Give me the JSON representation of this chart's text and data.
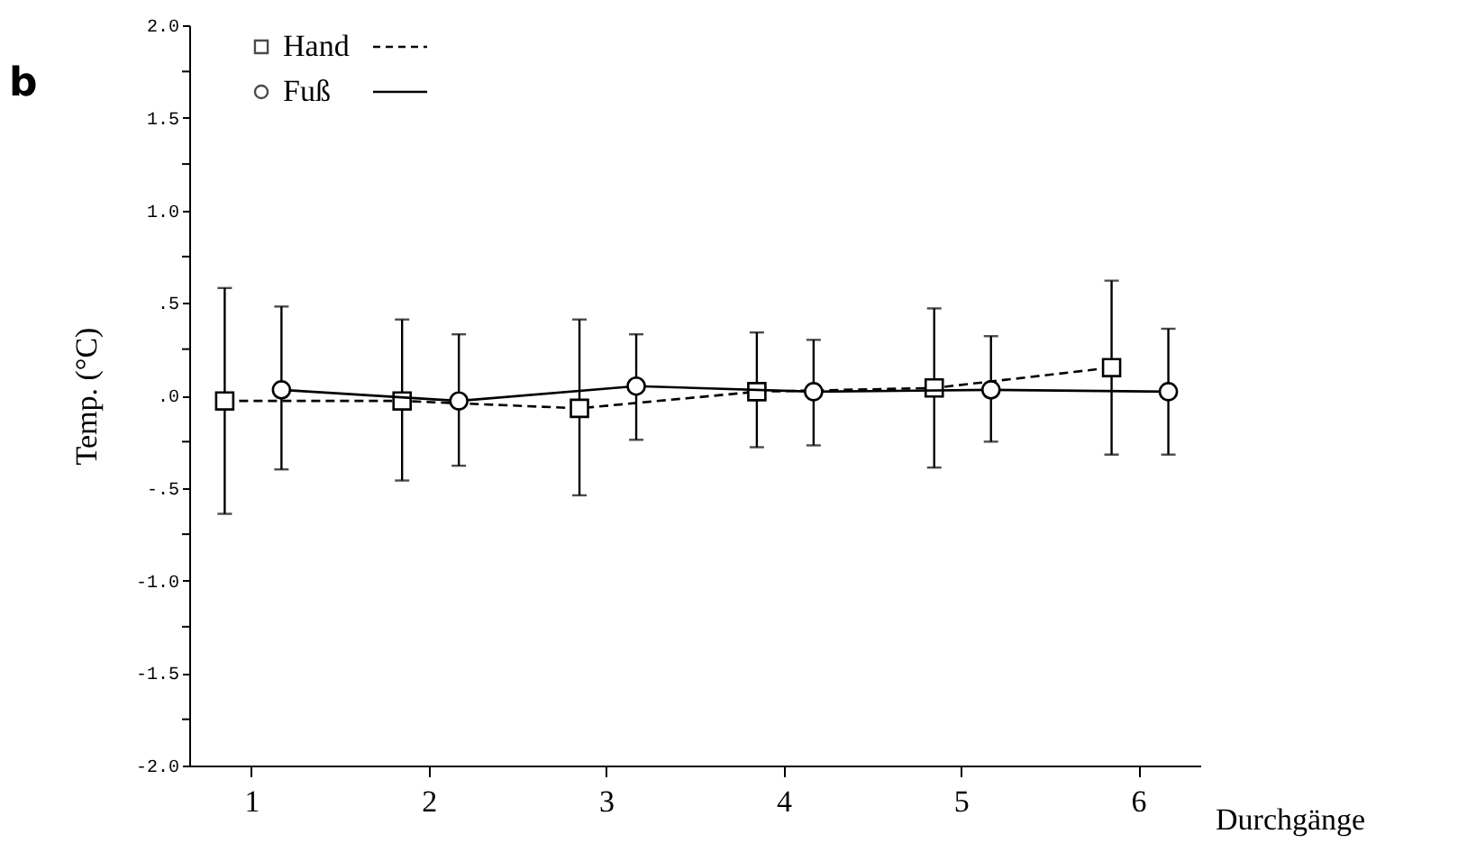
{
  "chart_data": {
    "type": "line",
    "xlabel": "Durchgänge",
    "ylabel": "Temp. (°C)",
    "annotations": [
      "b"
    ],
    "xlim": [
      0.65,
      6.35
    ],
    "xticks": [
      1,
      2,
      3,
      4,
      5,
      6
    ],
    "ylim": [
      -2.0,
      2.0
    ],
    "yticks": [
      {
        "value": -2.0,
        "label": "-2.0"
      },
      {
        "value": -1.75,
        "label": null
      },
      {
        "value": -1.5,
        "label": "-1.5"
      },
      {
        "value": -1.25,
        "label": null
      },
      {
        "value": -1.0,
        "label": "-1.0"
      },
      {
        "value": -0.75,
        "label": null
      },
      {
        "value": -0.5,
        "label": "-.5"
      },
      {
        "value": -0.25,
        "label": null
      },
      {
        "value": 0,
        "label": ".0"
      },
      {
        "value": 0.25,
        "label": null
      },
      {
        "value": 0.5,
        "label": ".5"
      },
      {
        "value": 0.75,
        "label": null
      },
      {
        "value": 1.0,
        "label": "1.0"
      },
      {
        "value": 1.25,
        "label": null
      },
      {
        "value": 1.5,
        "label": "1.5"
      },
      {
        "value": 1.75,
        "label": null
      },
      {
        "value": 2.0,
        "label": "2.0"
      }
    ],
    "grid": false,
    "legend": "top left",
    "series": [
      {
        "name": "Hand",
        "color": "#000000",
        "marker": "square",
        "line_style": "dashed",
        "x": [
          0.85,
          1.85,
          2.85,
          3.85,
          4.85,
          5.85
        ],
        "values": [
          -0.03,
          -0.03,
          -0.07,
          0.02,
          0.04,
          0.15
        ],
        "errors": [
          [
            -0.64,
            0.58
          ],
          [
            -0.46,
            0.41
          ],
          [
            -0.54,
            0.41
          ],
          [
            -0.28,
            0.34
          ],
          [
            -0.39,
            0.47
          ],
          [
            -0.32,
            0.62
          ]
        ]
      },
      {
        "name": "Fuß",
        "color": "#000000",
        "marker": "circle",
        "line_style": "solid",
        "x": [
          1.17,
          2.17,
          3.17,
          4.17,
          5.17,
          6.17
        ],
        "values": [
          0.03,
          -0.03,
          0.05,
          0.02,
          0.03,
          0.02
        ],
        "errors": [
          [
            -0.4,
            0.48
          ],
          [
            -0.38,
            0.33
          ],
          [
            -0.24,
            0.33
          ],
          [
            -0.27,
            0.3
          ],
          [
            -0.25,
            0.32
          ],
          [
            -0.32,
            0.36
          ]
        ]
      }
    ]
  }
}
